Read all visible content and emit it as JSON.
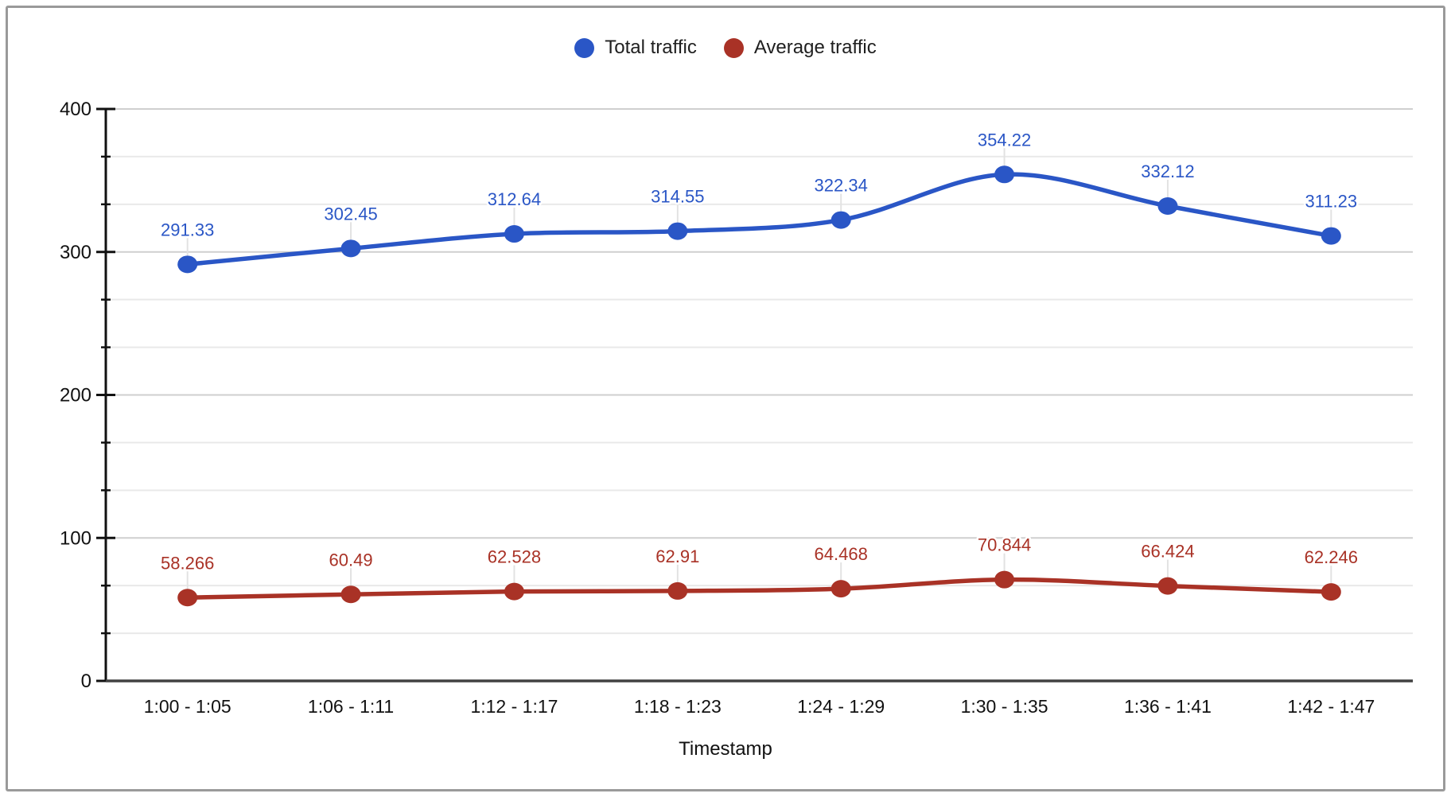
{
  "chart_data": {
    "type": "line",
    "title": "",
    "xlabel": "Timestamp",
    "ylabel": "",
    "ylim": [
      0,
      400
    ],
    "y_major_ticks": [
      0,
      100,
      200,
      300,
      400
    ],
    "y_minor_divisions": 3,
    "grid": true,
    "legend_position": "top-center",
    "line_smoothing": true,
    "categories": [
      "1:00 - 1:05",
      "1:06 - 1:11",
      "1:12 - 1:17",
      "1:18 - 1:23",
      "1:24 - 1:29",
      "1:30 - 1:35",
      "1:36 - 1:41",
      "1:42 - 1:47"
    ],
    "series": [
      {
        "name": "Total traffic",
        "color": "#2A56C6",
        "values": [
          291.33,
          302.45,
          312.64,
          314.55,
          322.34,
          354.22,
          332.12,
          311.23
        ],
        "labels": [
          "291.33",
          "302.45",
          "312.64",
          "314.55",
          "322.34",
          "354.22",
          "332.12",
          "311.23"
        ]
      },
      {
        "name": "Average traffic",
        "color": "#A93226",
        "values": [
          58.266,
          60.49,
          62.528,
          62.91,
          64.468,
          70.844,
          66.424,
          62.246
        ],
        "labels": [
          "58.266",
          "60.49",
          "62.528",
          "62.91",
          "64.468",
          "70.844",
          "66.424",
          "62.246"
        ]
      }
    ],
    "colors": {
      "major_gridline": "#cfcfcf",
      "minor_gridline": "#e9e9e9",
      "baseline": "#424242",
      "axis_line": "#111111",
      "tick": "#111111",
      "axis_text": "#111111",
      "label_stub": "#e2e2e2"
    }
  }
}
